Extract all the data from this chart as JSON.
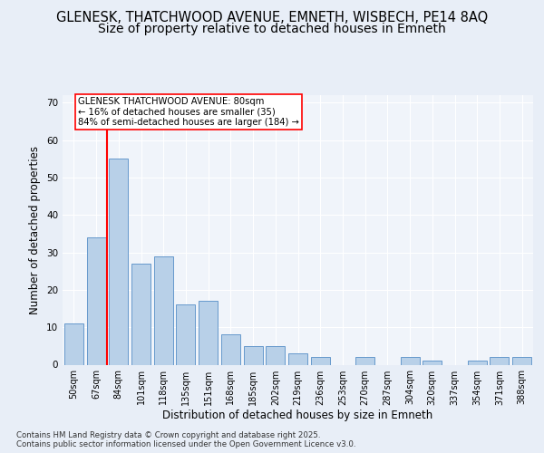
{
  "title1": "GLENESK, THATCHWOOD AVENUE, EMNETH, WISBECH, PE14 8AQ",
  "title2": "Size of property relative to detached houses in Emneth",
  "xlabel": "Distribution of detached houses by size in Emneth",
  "ylabel": "Number of detached properties",
  "categories": [
    "50sqm",
    "67sqm",
    "84sqm",
    "101sqm",
    "118sqm",
    "135sqm",
    "151sqm",
    "168sqm",
    "185sqm",
    "202sqm",
    "219sqm",
    "236sqm",
    "253sqm",
    "270sqm",
    "287sqm",
    "304sqm",
    "320sqm",
    "337sqm",
    "354sqm",
    "371sqm",
    "388sqm"
  ],
  "values": [
    11,
    34,
    55,
    27,
    29,
    16,
    17,
    8,
    5,
    5,
    3,
    2,
    0,
    2,
    0,
    2,
    1,
    0,
    1,
    2,
    2
  ],
  "bar_color": "#b8d0e8",
  "bar_edge_color": "#6699cc",
  "vline_color": "red",
  "annotation_text": "GLENESK THATCHWOOD AVENUE: 80sqm\n← 16% of detached houses are smaller (35)\n84% of semi-detached houses are larger (184) →",
  "annotation_box_color": "white",
  "annotation_box_edge": "red",
  "footer": "Contains HM Land Registry data © Crown copyright and database right 2025.\nContains public sector information licensed under the Open Government Licence v3.0.",
  "ylim": [
    0,
    72
  ],
  "yticks": [
    0,
    10,
    20,
    30,
    40,
    50,
    60,
    70
  ],
  "bg_color": "#e8eef7",
  "plot_bg_color": "#f0f4fa",
  "title_fontsize": 10.5,
  "label_fontsize": 8.5
}
